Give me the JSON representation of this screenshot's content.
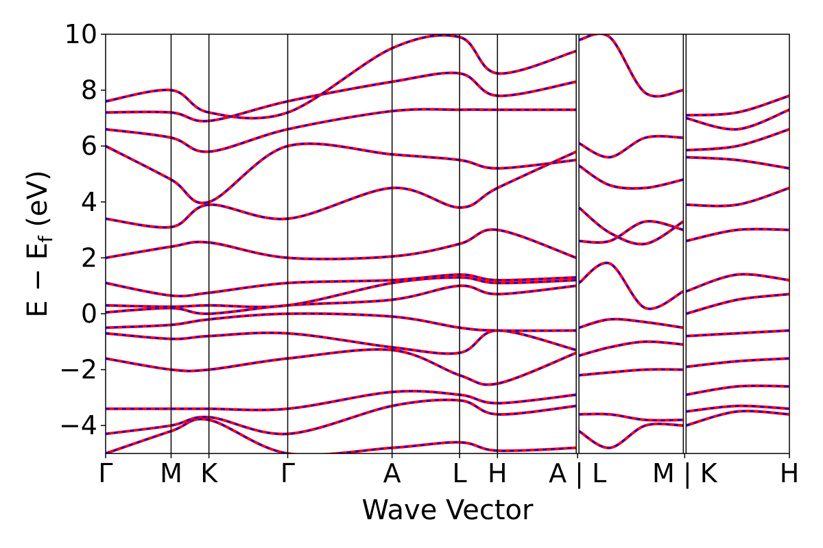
{
  "chart_data": {
    "type": "line",
    "title": "",
    "xlabel": "Wave Vector",
    "ylabel": "E − E",
    "ylabel_sub": "f",
    "ylabel_unit": " (eV)",
    "ylim": [
      -5,
      10
    ],
    "yticks": [
      {
        "value": 10,
        "label": "10"
      },
      {
        "value": 8,
        "label": "8"
      },
      {
        "value": 6,
        "label": "6"
      },
      {
        "value": 4,
        "label": "4"
      },
      {
        "value": 2,
        "label": "2"
      },
      {
        "value": 0,
        "label": "0"
      },
      {
        "value": -2,
        "label": "−2"
      },
      {
        "value": -4,
        "label": "−4"
      }
    ],
    "segments": [
      {
        "labels": [
          "Γ",
          "M",
          "K",
          "Γ",
          "A",
          "L",
          "H",
          "A"
        ],
        "rel": [
          0,
          0.64,
          1.01,
          1.78,
          2.8,
          3.46,
          3.83,
          4.6
        ]
      },
      {
        "labels": [
          "L",
          "M"
        ],
        "rel": [
          0,
          1.02
        ]
      },
      {
        "labels": [
          "K",
          "H"
        ],
        "rel": [
          0,
          1.01
        ]
      }
    ],
    "xtick_labels": [
      "Γ",
      "M",
      "K",
      "Γ",
      "A",
      "L",
      "H",
      "A | L",
      "M | K",
      "H"
    ],
    "grid": false,
    "legend": "none",
    "line_colors": {
      "solid": "#ff0000",
      "dashed": "#0000ff"
    },
    "bands": [
      {
        "segment": 0,
        "x": [
          0,
          0.64,
          1.01,
          1.78,
          2.8,
          3.46,
          3.83,
          4.6
        ],
        "y": [
          -5.0,
          -4.2,
          -3.8,
          -5.0,
          -4.8,
          -4.6,
          -4.9,
          -4.8
        ]
      },
      {
        "segment": 0,
        "x": [
          0,
          0.64,
          1.01,
          1.78,
          2.8,
          3.46,
          3.83,
          4.6
        ],
        "y": [
          -4.3,
          -4.0,
          -3.7,
          -4.3,
          -3.3,
          -3.1,
          -3.6,
          -3.3
        ]
      },
      {
        "segment": 0,
        "x": [
          0,
          0.64,
          1.01,
          1.78,
          2.8,
          3.46,
          3.83,
          4.6
        ],
        "y": [
          -3.4,
          -3.4,
          -3.4,
          -3.4,
          -2.8,
          -2.9,
          -3.2,
          -2.9
        ]
      },
      {
        "segment": 0,
        "x": [
          0,
          0.64,
          1.01,
          1.78,
          2.8,
          3.46,
          3.83,
          4.6
        ],
        "y": [
          -1.6,
          -2.0,
          -2.0,
          -1.6,
          -1.3,
          -2.2,
          -2.5,
          -1.4
        ]
      },
      {
        "segment": 0,
        "x": [
          0,
          0.64,
          1.01,
          1.78,
          2.8,
          3.46,
          3.83,
          4.6
        ],
        "y": [
          -0.7,
          -0.9,
          -0.8,
          -0.7,
          -1.2,
          -1.4,
          -0.6,
          -1.3
        ]
      },
      {
        "segment": 0,
        "x": [
          0,
          0.64,
          1.01,
          1.78,
          2.8,
          3.46,
          3.83,
          4.6
        ],
        "y": [
          -0.5,
          -0.4,
          -0.2,
          0.0,
          -0.1,
          -0.5,
          -0.6,
          -0.6
        ]
      },
      {
        "segment": 0,
        "x": [
          0,
          0.64,
          1.01,
          1.78,
          2.8,
          3.46,
          3.83,
          4.6
        ],
        "y": [
          0.05,
          0.2,
          0.0,
          0.3,
          0.5,
          1.0,
          0.7,
          1.0
        ]
      },
      {
        "segment": 0,
        "x": [
          0,
          0.64,
          1.01,
          1.78,
          2.8,
          3.46,
          3.83,
          4.6
        ],
        "y": [
          0.3,
          0.25,
          0.3,
          0.3,
          1.1,
          1.3,
          1.1,
          1.2
        ]
      },
      {
        "segment": 0,
        "x": [
          0,
          0.64,
          1.01,
          1.78,
          2.8,
          3.46,
          3.83,
          4.6
        ],
        "y": [
          1.1,
          0.65,
          0.75,
          1.1,
          1.2,
          1.4,
          1.2,
          1.3
        ]
      },
      {
        "segment": 0,
        "x": [
          0,
          0.64,
          1.01,
          1.78,
          2.8,
          3.46,
          3.83,
          4.6
        ],
        "y": [
          2.0,
          2.4,
          2.55,
          2.0,
          2.05,
          2.5,
          3.0,
          2.0
        ]
      },
      {
        "segment": 0,
        "x": [
          0,
          0.64,
          1.01,
          1.78,
          2.8,
          3.46,
          3.83,
          4.6
        ],
        "y": [
          3.4,
          3.1,
          3.9,
          3.4,
          4.5,
          3.8,
          4.5,
          5.8
        ]
      },
      {
        "segment": 0,
        "x": [
          0,
          0.64,
          1.01,
          1.78,
          2.8,
          3.46,
          3.83,
          4.6
        ],
        "y": [
          6.0,
          4.8,
          4.0,
          6.0,
          5.7,
          5.5,
          5.2,
          5.5
        ]
      },
      {
        "segment": 0,
        "x": [
          0,
          0.64,
          1.01,
          1.78,
          2.8,
          3.46,
          3.83,
          4.6
        ],
        "y": [
          6.6,
          6.3,
          5.8,
          6.6,
          7.25,
          7.3,
          7.3,
          7.3
        ]
      },
      {
        "segment": 0,
        "x": [
          0,
          0.64,
          1.01,
          1.78,
          2.8,
          3.46,
          3.83,
          4.6
        ],
        "y": [
          7.2,
          7.2,
          6.9,
          7.6,
          8.3,
          8.6,
          7.8,
          8.3
        ]
      },
      {
        "segment": 0,
        "x": [
          0,
          0.64,
          1.01,
          1.78,
          2.8,
          3.46,
          3.83,
          4.6
        ],
        "y": [
          7.6,
          8.0,
          7.2,
          7.2,
          9.5,
          9.9,
          8.6,
          9.4
        ]
      },
      {
        "segment": 1,
        "x": [
          0,
          0.3,
          0.65,
          1.02
        ],
        "y": [
          -4.2,
          -4.8,
          -4.0,
          -4.0
        ]
      },
      {
        "segment": 1,
        "x": [
          0,
          0.3,
          0.65,
          1.02
        ],
        "y": [
          -3.6,
          -3.6,
          -3.8,
          -3.8
        ]
      },
      {
        "segment": 1,
        "x": [
          0,
          0.3,
          0.65,
          1.02
        ],
        "y": [
          -2.2,
          -2.1,
          -2.0,
          -2.0
        ]
      },
      {
        "segment": 1,
        "x": [
          0,
          0.3,
          0.65,
          1.02
        ],
        "y": [
          -1.5,
          -1.2,
          -1.0,
          -1.1
        ]
      },
      {
        "segment": 1,
        "x": [
          0,
          0.3,
          0.65,
          1.02
        ],
        "y": [
          -0.5,
          -0.2,
          -0.3,
          -0.5
        ]
      },
      {
        "segment": 1,
        "x": [
          0,
          0.3,
          0.65,
          1.02
        ],
        "y": [
          1.1,
          1.8,
          0.2,
          0.8
        ]
      },
      {
        "segment": 1,
        "x": [
          0,
          0.3,
          0.65,
          1.02
        ],
        "y": [
          2.6,
          2.6,
          3.3,
          3.0
        ]
      },
      {
        "segment": 1,
        "x": [
          0,
          0.3,
          0.65,
          1.02
        ],
        "y": [
          3.8,
          2.9,
          2.5,
          3.3
        ]
      },
      {
        "segment": 1,
        "x": [
          0,
          0.3,
          0.65,
          1.02
        ],
        "y": [
          5.3,
          4.6,
          4.5,
          4.8
        ]
      },
      {
        "segment": 1,
        "x": [
          0,
          0.3,
          0.65,
          1.02
        ],
        "y": [
          6.1,
          5.6,
          6.3,
          6.3
        ]
      },
      {
        "segment": 1,
        "x": [
          0,
          0.3,
          0.65,
          1.02
        ],
        "y": [
          9.8,
          9.9,
          7.9,
          8.0
        ]
      },
      {
        "segment": 2,
        "x": [
          0,
          0.5,
          1.01
        ],
        "y": [
          -4.0,
          -3.5,
          -3.6
        ]
      },
      {
        "segment": 2,
        "x": [
          0,
          0.5,
          1.01
        ],
        "y": [
          -3.5,
          -3.3,
          -3.4
        ]
      },
      {
        "segment": 2,
        "x": [
          0,
          0.5,
          1.01
        ],
        "y": [
          -2.9,
          -2.6,
          -2.6
        ]
      },
      {
        "segment": 2,
        "x": [
          0,
          0.5,
          1.01
        ],
        "y": [
          -1.9,
          -1.7,
          -1.6
        ]
      },
      {
        "segment": 2,
        "x": [
          0,
          0.5,
          1.01
        ],
        "y": [
          -0.8,
          -0.7,
          -0.6
        ]
      },
      {
        "segment": 2,
        "x": [
          0,
          0.5,
          1.01
        ],
        "y": [
          0.0,
          0.5,
          0.7
        ]
      },
      {
        "segment": 2,
        "x": [
          0,
          0.5,
          1.01
        ],
        "y": [
          0.8,
          1.4,
          1.2
        ]
      },
      {
        "segment": 2,
        "x": [
          0,
          0.5,
          1.01
        ],
        "y": [
          2.6,
          3.0,
          3.0
        ]
      },
      {
        "segment": 2,
        "x": [
          0,
          0.5,
          1.01
        ],
        "y": [
          3.9,
          3.9,
          4.5
        ]
      },
      {
        "segment": 2,
        "x": [
          0,
          0.5,
          1.01
        ],
        "y": [
          5.6,
          5.5,
          5.2
        ]
      },
      {
        "segment": 2,
        "x": [
          0,
          0.5,
          1.01
        ],
        "y": [
          5.85,
          6.0,
          6.6
        ]
      },
      {
        "segment": 2,
        "x": [
          0,
          0.5,
          1.01
        ],
        "y": [
          7.0,
          6.6,
          7.3
        ]
      },
      {
        "segment": 2,
        "x": [
          0,
          0.5,
          1.01
        ],
        "y": [
          7.1,
          7.2,
          7.8
        ]
      }
    ]
  }
}
